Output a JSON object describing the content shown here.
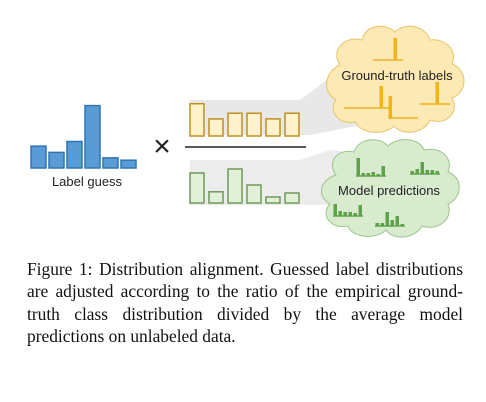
{
  "figure": {
    "label_guess_caption": "Label guess",
    "operator_symbol": "×",
    "cloud_top_label": "Ground-truth labels",
    "cloud_bottom_label": "Model predictions",
    "label_guess_values": [
      0.28,
      0.2,
      0.34,
      0.8,
      0.13,
      0.1
    ],
    "numerator_values": [
      0.85,
      0.45,
      0.6,
      0.6,
      0.45,
      0.6
    ],
    "denominator_values": [
      0.75,
      0.28,
      0.85,
      0.45,
      0.15,
      0.25
    ],
    "colors": {
      "blue_fill": "#5b9bd5",
      "blue_stroke": "#2e75b6",
      "orange_fill": "#fff2cc",
      "orange_stroke": "#c09020",
      "orange_bar": "#f2b21a",
      "green_fill": "#e2efd9",
      "green_stroke": "#6f9a5a",
      "green_bar": "#5ea34a",
      "cloud_top_fill": "#fde9b4",
      "cloud_top_stroke": "#e6c46a",
      "cloud_bottom_fill": "#d9ebcf",
      "cloud_bottom_stroke": "#9cc58a",
      "funnel": "#e6e6e6"
    }
  },
  "caption": "Figure 1: Distribution alignment. Guessed label distributions are adjusted according to the ratio of the empirical ground-truth class distribution divided by the average model predictions on un­labeled data."
}
